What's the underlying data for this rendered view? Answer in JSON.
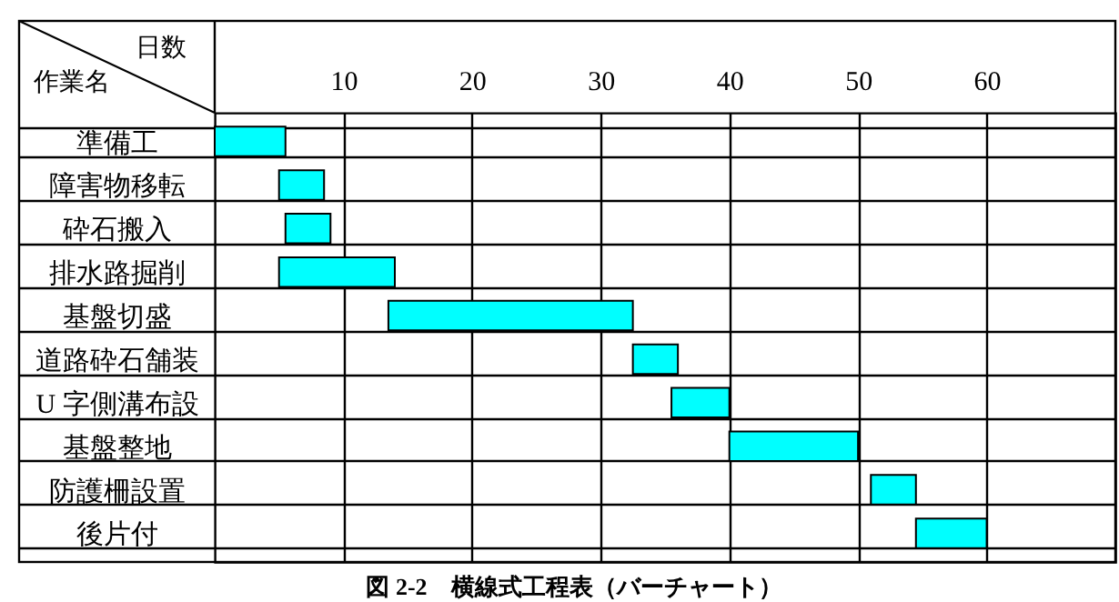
{
  "chart_data": {
    "type": "bar",
    "orientation": "horizontal",
    "title": "図 2-2　横線式工程表（バーチャート）",
    "xlabel": "日数",
    "ylabel": "作業名",
    "categories": [
      "準備工",
      "障害物移転",
      "砕石搬入",
      "排水路掘削",
      "基盤切盛",
      "道路砕石舗装",
      "U 字側溝布設",
      "基盤整地",
      "防護柵設置",
      "後片付"
    ],
    "base": [
      0,
      5,
      5.5,
      5,
      13.5,
      32.5,
      35.5,
      40,
      51,
      54.5
    ],
    "values": [
      5.5,
      3.5,
      3.5,
      9,
      19,
      3.5,
      4.5,
      10,
      3.5,
      5.5
    ],
    "color": "#00ffff",
    "xlim": [
      0,
      70
    ],
    "xticks": [
      10,
      20,
      30,
      40,
      50,
      60
    ],
    "grid": true
  }
}
